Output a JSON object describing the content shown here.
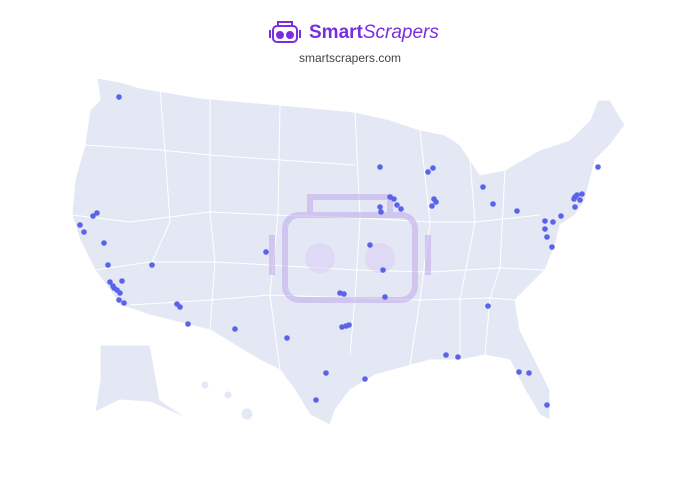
{
  "header": {
    "brand": {
      "bold": "Smart",
      "italic": "Scrapers"
    },
    "url": "smartscrapers.com"
  }
}
